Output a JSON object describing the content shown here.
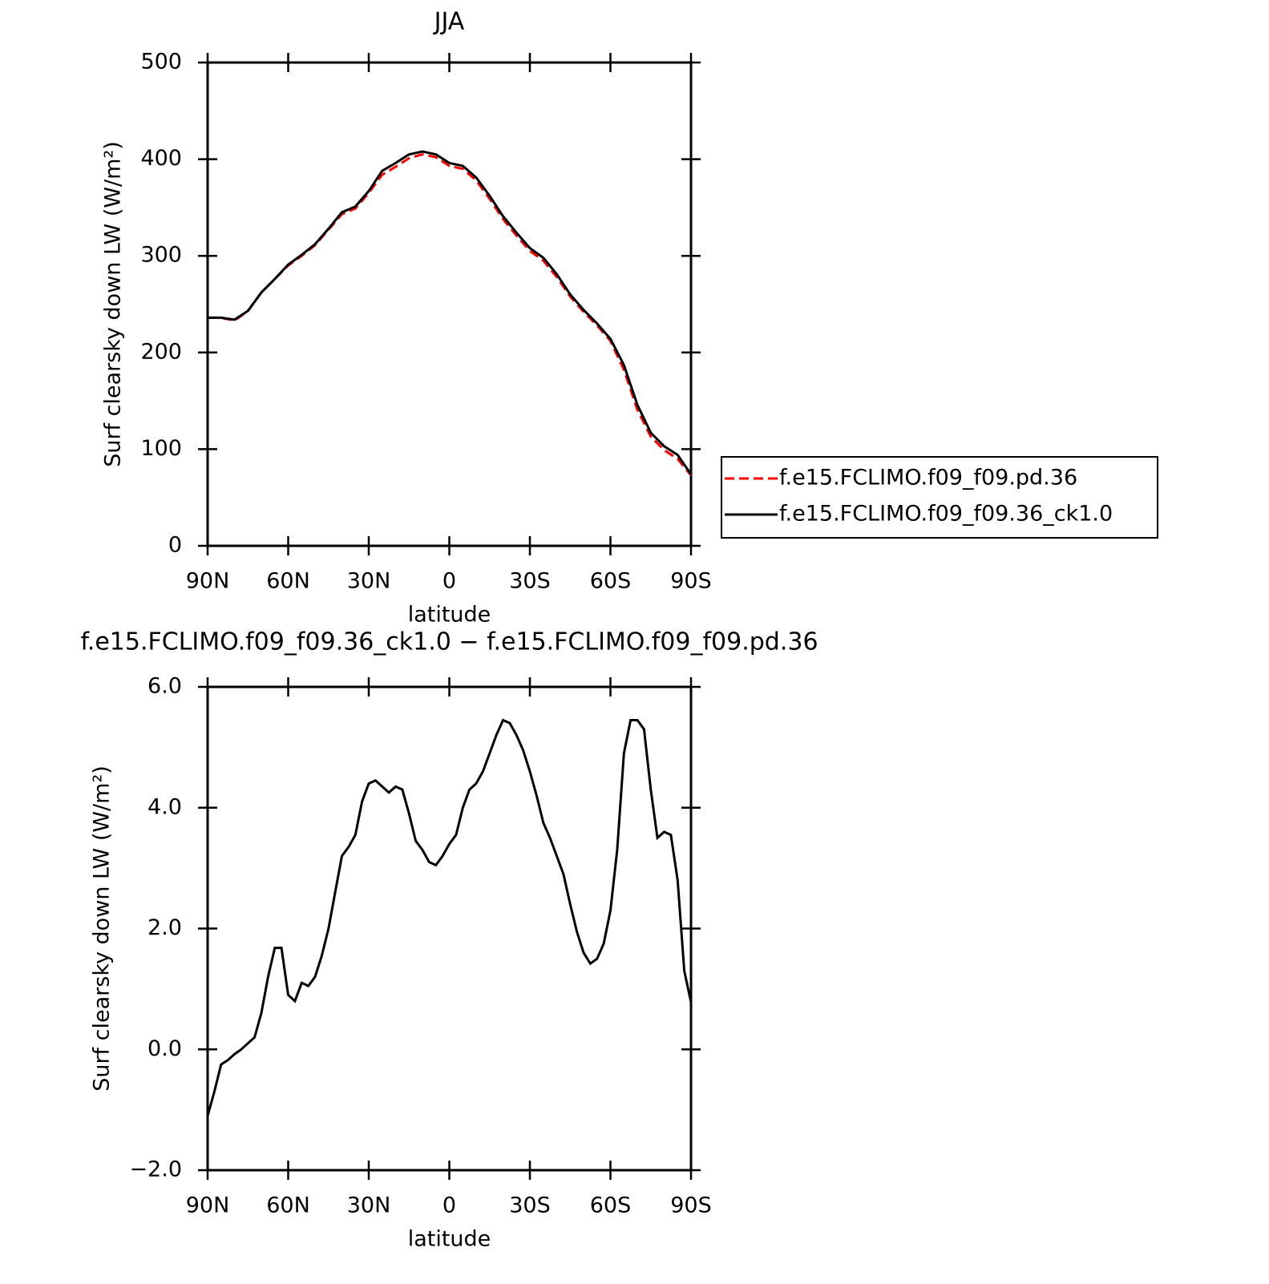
{
  "chart_data": [
    {
      "type": "line",
      "title": "JJA",
      "xlabel": "latitude",
      "ylabel": "Surf clearsky down LW (W/m²)",
      "x": [
        90,
        85,
        80,
        75,
        70,
        65,
        60,
        55,
        50,
        45,
        40,
        35,
        30,
        25,
        20,
        15,
        10,
        5,
        0,
        -5,
        -10,
        -15,
        -20,
        -25,
        -30,
        -35,
        -40,
        -45,
        -50,
        -55,
        -60,
        -65,
        -70,
        -75,
        -80,
        -85,
        -90
      ],
      "series": [
        {
          "name": "f.e15.FCLIMO.f09_f09.pd.36",
          "color": "#ff0000",
          "dash": true,
          "values": [
            236,
            236,
            233,
            243,
            262,
            276,
            290,
            300,
            311,
            327,
            343,
            349,
            365,
            384,
            392,
            401,
            405,
            402,
            393,
            390,
            378,
            359,
            338,
            321,
            305,
            295,
            278,
            258,
            242,
            228,
            212,
            182,
            141,
            113,
            99,
            90,
            73
          ]
        },
        {
          "name": "f.e15.FCLIMO.f09_f09.36_ck1.0",
          "color": "#000000",
          "dash": false,
          "values": [
            236,
            236,
            234,
            243,
            262,
            276,
            291,
            301,
            312,
            328,
            345,
            351,
            367,
            388,
            396,
            405,
            408,
            405,
            396,
            393,
            381,
            362,
            341,
            324,
            308,
            298,
            281,
            260,
            244,
            230,
            214,
            187,
            146,
            117,
            103,
            94,
            74
          ]
        }
      ],
      "xlim": [
        90,
        -90
      ],
      "xticks": [
        {
          "value": 90,
          "label": "90N"
        },
        {
          "value": 60,
          "label": "60N"
        },
        {
          "value": 30,
          "label": "30N"
        },
        0,
        {
          "value": -30,
          "label": "30S"
        },
        {
          "value": -60,
          "label": "60S"
        },
        {
          "value": -90,
          "label": "90S"
        }
      ],
      "ylim": [
        0,
        500
      ],
      "yticks": [
        0,
        100,
        200,
        300,
        400,
        500
      ],
      "legend": "right"
    },
    {
      "type": "line",
      "title": "f.e15.FCLIMO.f09_f09.36_ck1.0 − f.e15.FCLIMO.f09_f09.pd.36",
      "xlabel": "latitude",
      "ylabel": "Surf clearsky down LW (W/m²)",
      "x": [
        90,
        87.5,
        85,
        82.5,
        80,
        77.5,
        75,
        72.5,
        70,
        67.5,
        65,
        62.5,
        60,
        57.5,
        55,
        52.5,
        50,
        47.5,
        45,
        42.5,
        40,
        37.5,
        35,
        32.5,
        30,
        27.5,
        25,
        22.5,
        20,
        17.5,
        15,
        12.5,
        10,
        7.5,
        5,
        2.5,
        0,
        -2.5,
        -5,
        -7.5,
        -10,
        -12.5,
        -15,
        -17.5,
        -20,
        -22.5,
        -25,
        -27.5,
        -30,
        -32.5,
        -35,
        -37.5,
        -40,
        -42.5,
        -45,
        -47.5,
        -50,
        -52.5,
        -55,
        -57.5,
        -60,
        -62.5,
        -65,
        -67.5,
        -70,
        -72.5,
        -75,
        -77.5,
        -80,
        -82.5,
        -85,
        -87.5,
        -90
      ],
      "color": "#000000",
      "values": [
        -1.1,
        -0.7,
        -0.25,
        -0.18,
        -0.08,
        0.0,
        0.1,
        0.2,
        0.6,
        1.2,
        1.68,
        1.68,
        0.9,
        0.8,
        1.1,
        1.05,
        1.2,
        1.55,
        2.0,
        2.6,
        3.2,
        3.35,
        3.55,
        4.1,
        4.4,
        4.45,
        4.35,
        4.25,
        4.35,
        4.3,
        3.9,
        3.45,
        3.3,
        3.1,
        3.05,
        3.2,
        3.4,
        3.55,
        4.0,
        4.3,
        4.4,
        4.6,
        4.9,
        5.2,
        5.45,
        5.4,
        5.2,
        4.95,
        4.6,
        4.2,
        3.75,
        3.5,
        3.2,
        2.9,
        2.4,
        1.95,
        1.6,
        1.42,
        1.5,
        1.75,
        2.3,
        3.3,
        4.9,
        5.45,
        5.45,
        5.3,
        4.3,
        3.5,
        3.6,
        3.55,
        2.8,
        1.3,
        0.78
      ],
      "xlim": [
        90,
        -90
      ],
      "xticks": [
        {
          "value": 90,
          "label": "90N"
        },
        {
          "value": 60,
          "label": "60N"
        },
        {
          "value": 30,
          "label": "30N"
        },
        0,
        {
          "value": -30,
          "label": "30S"
        },
        {
          "value": -60,
          "label": "60S"
        },
        {
          "value": -90,
          "label": "90S"
        }
      ],
      "ylim": [
        -2,
        6
      ],
      "yticks": [
        {
          "value": -2,
          "label": "−2.0"
        },
        {
          "value": 0,
          "label": "0.0"
        },
        {
          "value": 2,
          "label": "2.0"
        },
        {
          "value": 4,
          "label": "4.0"
        },
        {
          "value": 6,
          "label": "6.0"
        }
      ]
    }
  ]
}
